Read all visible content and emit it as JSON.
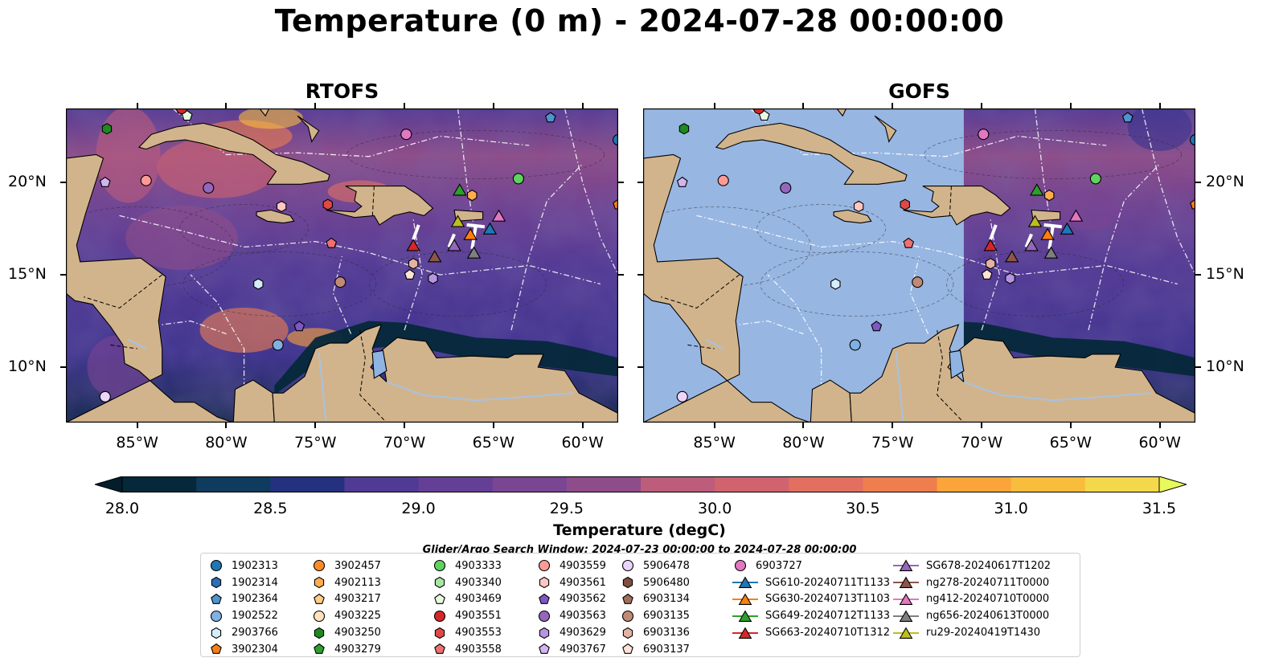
{
  "title": "Temperature (0 m) - 2024-07-28 00:00:00",
  "panels": [
    {
      "title": "RTOFS",
      "shading": "full"
    },
    {
      "title": "GOFS",
      "shading": "partial"
    }
  ],
  "axes": {
    "lon_ticks": [
      "85°W",
      "80°W",
      "75°W",
      "70°W",
      "65°W",
      "60°W"
    ],
    "lat_ticks": [
      "20°N",
      "15°N",
      "10°N"
    ],
    "lon_range": [
      -89,
      -58
    ],
    "lat_range": [
      7,
      24
    ]
  },
  "colorbar": {
    "label": "Temperature (degC)",
    "min": 28.0,
    "max": 31.5,
    "step": 0.25,
    "ticks": [
      "28.0",
      "28.5",
      "29.0",
      "29.5",
      "30.0",
      "30.5",
      "31.0",
      "31.5"
    ],
    "colors": [
      "#05283a",
      "#0e3b5e",
      "#24317e",
      "#3a338f",
      "#503a96",
      "#643f96",
      "#7a4592",
      "#8f4c8b",
      "#a55484",
      "#bd5c7b",
      "#d1636f",
      "#e26f60",
      "#ef7e4f",
      "#f68f40",
      "#fba43a",
      "#f9bd3d",
      "#f4d84c"
    ],
    "under_color": "#031d2c",
    "over_color": "#e8fa5b"
  },
  "search_window": "Glider/Argo Search Window: 2024-07-23 00:00:00 to 2024-07-28 00:00:00",
  "legend": [
    {
      "label": "1902313",
      "marker": "circle",
      "color": "#1f77b4"
    },
    {
      "label": "1902314",
      "marker": "hexagon",
      "color": "#2b6fb8"
    },
    {
      "label": "1902364",
      "marker": "pentagon",
      "color": "#4f94cd"
    },
    {
      "label": "1902522",
      "marker": "circle",
      "color": "#7fb2e3"
    },
    {
      "label": "2903766",
      "marker": "hexagon",
      "color": "#d6ecfb"
    },
    {
      "label": "3902304",
      "marker": "pentagon",
      "color": "#f57f17"
    },
    {
      "label": "3902457",
      "marker": "circle",
      "color": "#ff8c27"
    },
    {
      "label": "4902113",
      "marker": "hexagon",
      "color": "#ffad4d"
    },
    {
      "label": "4903217",
      "marker": "pentagon",
      "color": "#ffcc8a"
    },
    {
      "label": "4903225",
      "marker": "circle",
      "color": "#ffe3c0"
    },
    {
      "label": "4903250",
      "marker": "hexagon",
      "color": "#1f8a1f"
    },
    {
      "label": "4903279",
      "marker": "pentagon",
      "color": "#2ca02c"
    },
    {
      "label": "4903333",
      "marker": "circle",
      "color": "#5ed35e"
    },
    {
      "label": "4903340",
      "marker": "hexagon",
      "color": "#a6e8a0"
    },
    {
      "label": "4903469",
      "marker": "pentagon",
      "color": "#e6fae0"
    },
    {
      "label": "4903551",
      "marker": "circle",
      "color": "#d62728"
    },
    {
      "label": "4903553",
      "marker": "hexagon",
      "color": "#e04848"
    },
    {
      "label": "4903558",
      "marker": "pentagon",
      "color": "#ef7070"
    },
    {
      "label": "4903559",
      "marker": "circle",
      "color": "#ff9a96"
    },
    {
      "label": "4903561",
      "marker": "hexagon",
      "color": "#ffc7c4"
    },
    {
      "label": "4903562",
      "marker": "pentagon",
      "color": "#7e57c2"
    },
    {
      "label": "4903563",
      "marker": "circle",
      "color": "#9467bd"
    },
    {
      "label": "4903629",
      "marker": "hexagon",
      "color": "#b794e0"
    },
    {
      "label": "4903767",
      "marker": "pentagon",
      "color": "#d2b5f0"
    },
    {
      "label": "5906478",
      "marker": "circle",
      "color": "#ecd5fb"
    },
    {
      "label": "5906480",
      "marker": "hexagon",
      "color": "#7f4f3f"
    },
    {
      "label": "6903134",
      "marker": "pentagon",
      "color": "#a0705c"
    },
    {
      "label": "6903135",
      "marker": "circle",
      "color": "#c08a78"
    },
    {
      "label": "6903136",
      "marker": "hexagon",
      "color": "#e4b2a4"
    },
    {
      "label": "6903137",
      "marker": "pentagon",
      "color": "#ffe2d8"
    },
    {
      "label": "6903727",
      "marker": "circle",
      "color": "#e377c2"
    },
    {
      "label": "SG610-20240711T1133",
      "marker": "triangle",
      "color": "#1f77b4"
    },
    {
      "label": "SG630-20240713T1103",
      "marker": "triangle",
      "color": "#ff7f0e"
    },
    {
      "label": "SG649-20240712T1133",
      "marker": "triangle",
      "color": "#2ca02c"
    },
    {
      "label": "SG663-20240710T1312",
      "marker": "triangle",
      "color": "#d62728"
    },
    {
      "label": "SG678-20240617T1202",
      "marker": "triangle",
      "color": "#9467bd"
    },
    {
      "label": "ng278-20240711T0000",
      "marker": "triangle",
      "color": "#8c564b"
    },
    {
      "label": "ng412-20240710T0000",
      "marker": "triangle",
      "color": "#e377c2"
    },
    {
      "label": "ng656-20240613T0000",
      "marker": "triangle",
      "color": "#7f7f7f"
    },
    {
      "label": "ru29-20240419T1430",
      "marker": "triangle",
      "color": "#bcbd22"
    }
  ],
  "observations": [
    {
      "id": "1902313",
      "lon": -58.0,
      "lat": 22.3
    },
    {
      "id": "1902364",
      "lon": -61.8,
      "lat": 23.5
    },
    {
      "id": "2903766",
      "lon": -78.2,
      "lat": 14.5
    },
    {
      "id": "3902304",
      "lon": -58.0,
      "lat": 18.8
    },
    {
      "id": "4902113",
      "lon": -66.2,
      "lat": 19.3
    },
    {
      "id": "4903250",
      "lon": -86.7,
      "lat": 22.9
    },
    {
      "id": "4903333",
      "lon": -63.6,
      "lat": 20.2
    },
    {
      "id": "4903469",
      "lon": -82.2,
      "lat": 23.6
    },
    {
      "id": "4903551",
      "lon": -82.5,
      "lat": 24.0
    },
    {
      "id": "4903553",
      "lon": -74.3,
      "lat": 18.8
    },
    {
      "id": "4903558",
      "lon": -74.1,
      "lat": 16.7
    },
    {
      "id": "4903559",
      "lon": -84.5,
      "lat": 20.1
    },
    {
      "id": "4903561",
      "lon": -76.9,
      "lat": 18.7
    },
    {
      "id": "4903562",
      "lon": -75.9,
      "lat": 12.2
    },
    {
      "id": "4903563",
      "lon": -81.0,
      "lat": 19.7
    },
    {
      "id": "4903629",
      "lon": -68.4,
      "lat": 14.8
    },
    {
      "id": "4903767",
      "lon": -86.8,
      "lat": 20.0
    },
    {
      "id": "5906478",
      "lon": -86.8,
      "lat": 8.4
    },
    {
      "id": "1902522",
      "lon": -77.1,
      "lat": 11.2
    },
    {
      "id": "6903135",
      "lon": -73.6,
      "lat": 14.6
    },
    {
      "id": "6903136",
      "lon": -69.5,
      "lat": 15.6
    },
    {
      "id": "6903137",
      "lon": -69.7,
      "lat": 15.0
    },
    {
      "id": "6903727",
      "lon": -69.9,
      "lat": 22.6
    },
    {
      "id": "SG610-20240711T1133",
      "lon": -65.2,
      "lat": 17.5
    },
    {
      "id": "SG630-20240713T1103",
      "lon": -66.3,
      "lat": 17.2
    },
    {
      "id": "SG649-20240712T1133",
      "lon": -66.9,
      "lat": 19.6
    },
    {
      "id": "SG663-20240710T1312",
      "lon": -69.5,
      "lat": 16.6
    },
    {
      "id": "SG678-20240617T1202",
      "lon": -67.2,
      "lat": 16.6
    },
    {
      "id": "ng278-20240711T0000",
      "lon": -68.3,
      "lat": 16.0
    },
    {
      "id": "ng412-20240710T0000",
      "lon": -64.7,
      "lat": 18.2
    },
    {
      "id": "ng656-20240613T0000",
      "lon": -66.1,
      "lat": 16.2
    },
    {
      "id": "ru29-20240419T1430",
      "lon": -67.0,
      "lat": 17.9
    }
  ]
}
